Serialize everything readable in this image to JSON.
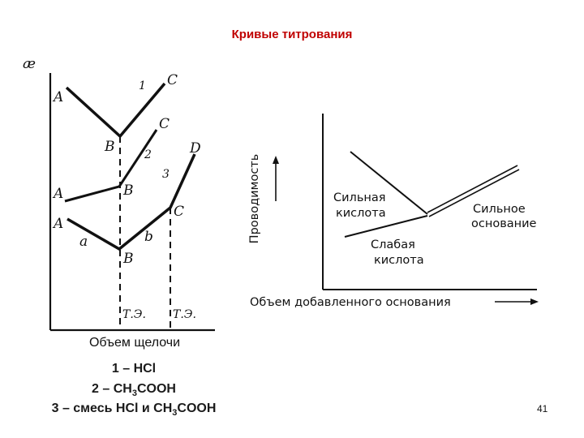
{
  "slide": {
    "title": "Кривые титрования",
    "page_number": "41"
  },
  "left_chart": {
    "y_axis_symbol": "æ",
    "x_axis_label": "Объем щелочи",
    "curve_numbers": [
      "1",
      "2",
      "3"
    ],
    "point_labels": [
      "A",
      "B",
      "C",
      "A",
      "B",
      "C",
      "A",
      "B",
      "C",
      "D"
    ],
    "segment_labels": [
      "a",
      "b"
    ],
    "equivalence_labels": [
      "Т.Э.",
      "Т.Э."
    ]
  },
  "legend": {
    "line1": "1 – HCl",
    "line2_prefix": "2 – CH",
    "line2_sub": "3",
    "line2_suffix": "COOH",
    "line3_prefix": "3 – смесь HCl и CH",
    "line3_sub": "3",
    "line3_suffix": "COOH"
  },
  "right_chart": {
    "y_axis_label": "Проводимость",
    "x_axis_label": "Объем добавленного основания",
    "strong_acid_line1": "Сильная",
    "strong_acid_line2": "кислота",
    "strong_base_line1": "Сильное",
    "strong_base_line2": "основание",
    "weak_acid_line1": "Слабая",
    "weak_acid_line2": "кислота"
  }
}
